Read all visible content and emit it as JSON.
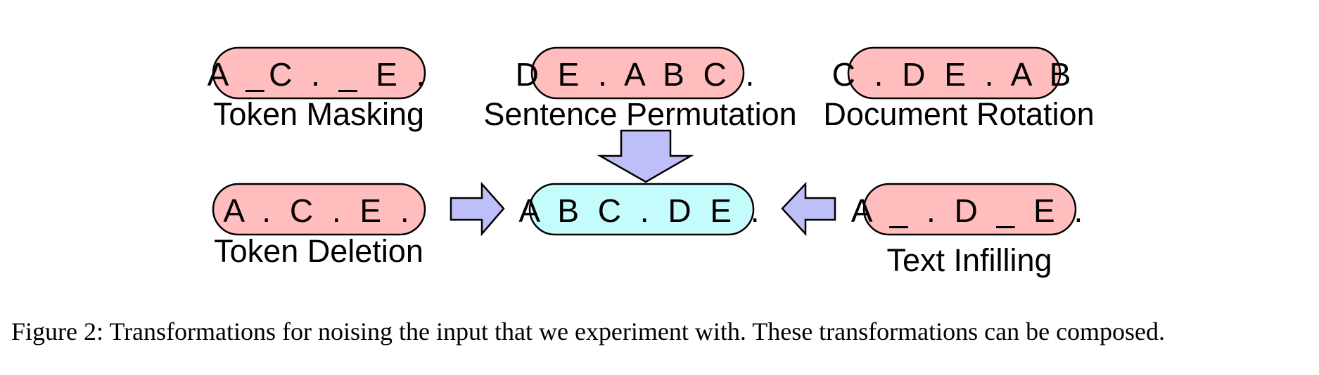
{
  "colors": {
    "noised": "#ffbdbd",
    "original": "#c4fbfb",
    "arrow": "#bebef9",
    "stroke": "#000000"
  },
  "nodes": {
    "token_masking": {
      "sequence": "A _C . _ E .",
      "label": "Token Masking"
    },
    "sentence_permutation": {
      "sequence": "D E . A B C .",
      "label": "Sentence Permutation"
    },
    "document_rotation": {
      "sequence": "C . D E . A B",
      "label": "Document Rotation"
    },
    "token_deletion": {
      "sequence": "A . C . E .",
      "label": "Token Deletion"
    },
    "original": {
      "sequence": "A B C . D E ."
    },
    "text_infilling": {
      "sequence": "A _ . D _ E .",
      "label": "Text Infilling"
    }
  },
  "caption": "Figure 2: Transformations for noising the input that we experiment with. These transformations can be composed."
}
